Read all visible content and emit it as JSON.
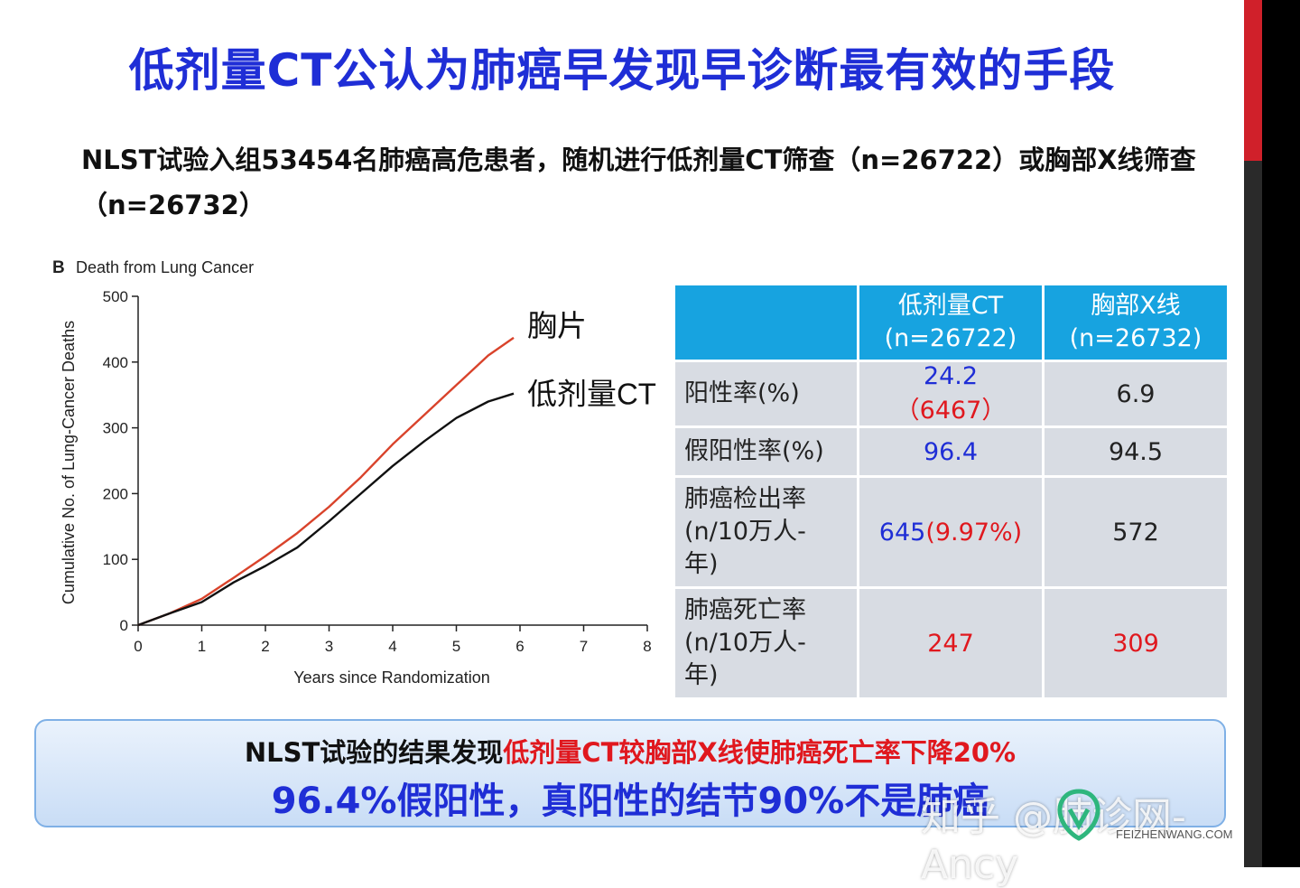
{
  "title": "低剂量CT公认为肺癌早发现早诊断最有效的手段",
  "subtitle": "NLST试验入组53454名肺癌高危患者，随机进行低剂量CT筛查（n=26722）或胸部X线筛查（n=26732）",
  "chart_data": {
    "type": "line",
    "panel": "B",
    "title": "Death from Lung Cancer",
    "xlabel": "Years since Randomization",
    "ylabel": "Cumulative No. of Lung-Cancer Deaths",
    "xlim": [
      0,
      8
    ],
    "ylim": [
      0,
      500
    ],
    "xticks": [
      0,
      1,
      2,
      3,
      4,
      5,
      6,
      7,
      8
    ],
    "yticks": [
      0,
      100,
      200,
      300,
      400,
      500
    ],
    "grid": false,
    "series": [
      {
        "name": "胸片",
        "color": "#d9432b",
        "x": [
          0,
          0.5,
          1,
          1.5,
          2,
          2.5,
          3,
          3.5,
          4,
          4.5,
          5,
          5.5,
          5.9
        ],
        "y": [
          0,
          18,
          40,
          72,
          105,
          140,
          180,
          225,
          275,
          320,
          365,
          410,
          437
        ]
      },
      {
        "name": "低剂量CT",
        "color": "#111111",
        "x": [
          0,
          0.5,
          1,
          1.5,
          2,
          2.5,
          3,
          3.5,
          4,
          4.5,
          5,
          5.5,
          5.9
        ],
        "y": [
          0,
          18,
          35,
          65,
          90,
          118,
          158,
          200,
          242,
          280,
          315,
          340,
          352
        ]
      }
    ]
  },
  "table": {
    "headers": [
      "",
      "低剂量CT\n(n=26722)",
      "胸部X线\n(n=26732)"
    ],
    "rows": [
      {
        "label": "阳性率(%)",
        "label_color": "dark",
        "ct": "24.2",
        "ct_extra": "（6467）",
        "xray": "6.9"
      },
      {
        "label": "假阳性率(%)",
        "label_color": "dark",
        "ct": "96.4",
        "ct_extra": "",
        "xray": "94.5"
      },
      {
        "label": "肺癌检出率\n(n/10万人-\n年)",
        "label_color": "dark",
        "ct": "645",
        "ct_extra": "(9.97%)",
        "xray": "572"
      },
      {
        "label": "肺癌死亡率\n(n/10万人-\n年)",
        "label_color": "red",
        "ct": "247",
        "ct_extra": "",
        "xray": "309"
      }
    ]
  },
  "conclusion": {
    "line1_black": "NLST试验的结果发现",
    "line1_red": "低剂量CT较胸部X线使肺癌死亡率下降20%",
    "line2": "96.4%假阳性，真阳性的结节90%不是肺癌"
  },
  "watermark": {
    "text": "知乎 @肺诊网-Ancy",
    "site": "FEIZHENWANG.COM"
  },
  "colors": {
    "title": "#1f2ed6",
    "accent_red": "#e0181e",
    "table_header": "#17a3e0",
    "table_cell": "#d8dce3"
  }
}
